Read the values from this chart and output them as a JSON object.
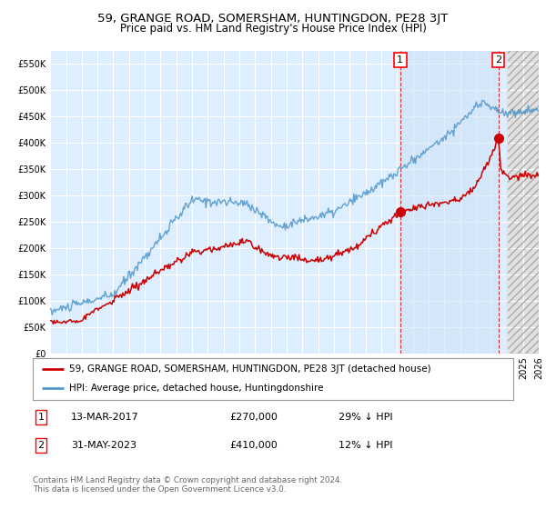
{
  "title": "59, GRANGE ROAD, SOMERSHAM, HUNTINGDON, PE28 3JT",
  "subtitle": "Price paid vs. HM Land Registry's House Price Index (HPI)",
  "ylabel_ticks": [
    "£0",
    "£50K",
    "£100K",
    "£150K",
    "£200K",
    "£250K",
    "£300K",
    "£350K",
    "£400K",
    "£450K",
    "£500K",
    "£550K"
  ],
  "ytick_values": [
    0,
    50000,
    100000,
    150000,
    200000,
    250000,
    300000,
    350000,
    400000,
    450000,
    500000,
    550000
  ],
  "ylim": [
    0,
    575000
  ],
  "background_color": "#ffffff",
  "plot_bg_color": "#ddeeff",
  "plot_bg_color_right": "#e8e8e8",
  "grid_color": "#ffffff",
  "hpi_color": "#5599cc",
  "price_color": "#cc0000",
  "annotation1_year": 2017.2,
  "annotation1_value": 270000,
  "annotation1_label": "1",
  "annotation2_year": 2023.42,
  "annotation2_value": 410000,
  "annotation2_label": "2",
  "legend_line1": "59, GRANGE ROAD, SOMERSHAM, HUNTINGDON, PE28 3JT (detached house)",
  "legend_line2": "HPI: Average price, detached house, Huntingdonshire",
  "footer": "Contains HM Land Registry data © Crown copyright and database right 2024.\nThis data is licensed under the Open Government Licence v3.0.",
  "title_fontsize": 9.5,
  "subtitle_fontsize": 8.5,
  "tick_fontsize": 7,
  "legend_fontsize": 7.5,
  "table_fontsize": 8,
  "xmin": 1995,
  "xmax": 2026
}
